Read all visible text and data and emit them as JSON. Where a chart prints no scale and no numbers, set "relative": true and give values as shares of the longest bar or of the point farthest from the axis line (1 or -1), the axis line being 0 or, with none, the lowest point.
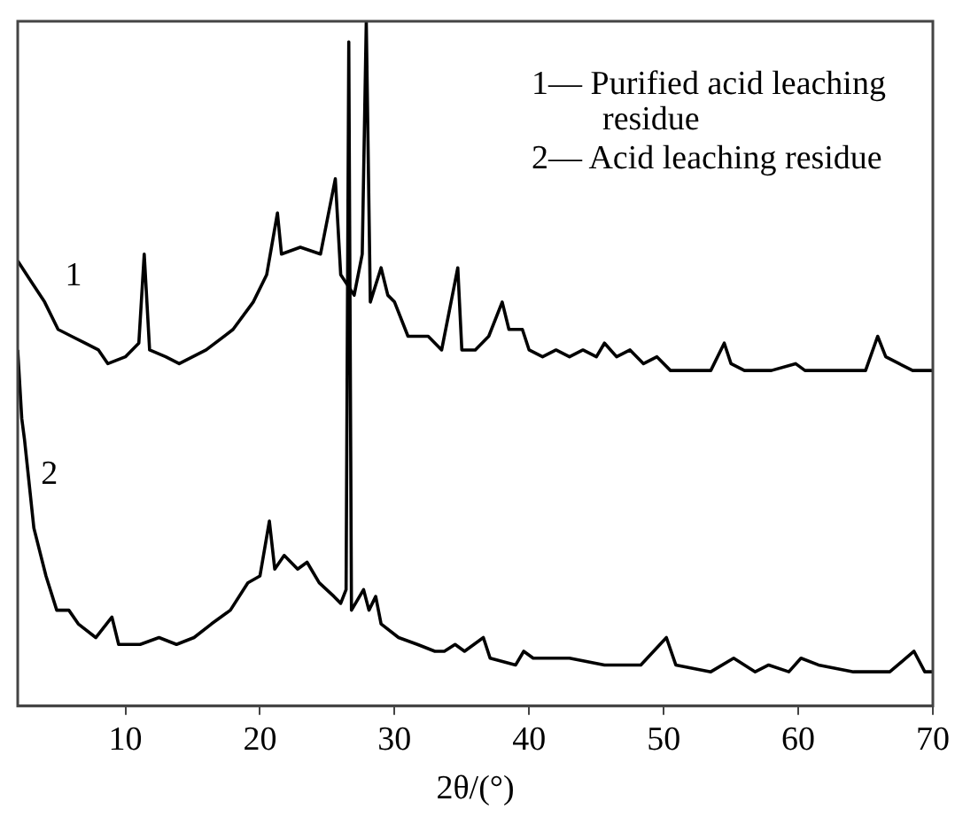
{
  "chart_data": {
    "type": "line",
    "relative": true,
    "xlabel": "2θ/(°)",
    "xlim": [
      2,
      70
    ],
    "xticks": [
      10,
      20,
      30,
      40,
      50,
      60,
      70
    ],
    "legend": false,
    "grid": false,
    "marker": "none",
    "line_style": "solid",
    "annotations": [
      "1— Purified acid leaching residue",
      "2— Acid leaching residue"
    ],
    "series": [
      {
        "name": "1",
        "color": "#000000",
        "x": [
          2,
          3,
          4,
          5,
          6,
          7,
          8,
          8.7,
          10,
          11,
          11.4,
          11.8,
          13,
          14,
          16,
          18,
          19.5,
          20.5,
          21.3,
          21.6,
          23,
          24.5,
          25.6,
          26,
          27,
          27.6,
          27.9,
          28.2,
          29,
          29.5,
          30,
          31,
          32.5,
          33.5,
          34.7,
          35,
          36,
          37,
          38,
          38.5,
          39.5,
          40,
          41,
          42,
          43,
          44,
          45,
          45.6,
          46.5,
          47.5,
          48.5,
          49.5,
          50.5,
          52,
          53.5,
          54.5,
          55,
          56,
          58,
          59.8,
          60.5,
          63,
          65,
          65.9,
          66.5,
          67.5,
          68.5,
          69.5,
          70
        ],
        "values": [
          0.65,
          0.62,
          0.59,
          0.55,
          0.54,
          0.53,
          0.52,
          0.5,
          0.51,
          0.53,
          0.66,
          0.52,
          0.51,
          0.5,
          0.52,
          0.55,
          0.59,
          0.63,
          0.72,
          0.66,
          0.67,
          0.66,
          0.77,
          0.63,
          0.6,
          0.66,
          1,
          0.59,
          0.64,
          0.6,
          0.59,
          0.54,
          0.54,
          0.52,
          0.64,
          0.52,
          0.52,
          0.54,
          0.59,
          0.55,
          0.55,
          0.52,
          0.51,
          0.52,
          0.51,
          0.52,
          0.51,
          0.53,
          0.51,
          0.52,
          0.5,
          0.51,
          0.49,
          0.49,
          0.49,
          0.53,
          0.5,
          0.49,
          0.49,
          0.5,
          0.49,
          0.49,
          0.49,
          0.54,
          0.51,
          0.5,
          0.49,
          0.49,
          0.49
        ]
      },
      {
        "name": "2",
        "color": "#000000",
        "x": [
          2,
          2.3,
          2.5,
          3.2,
          4.1,
          4.9,
          5.8,
          6.5,
          7.8,
          9,
          9.5,
          11.1,
          12.5,
          13.8,
          15.1,
          16.4,
          17.8,
          19.1,
          20,
          20.7,
          21.1,
          21.8,
          22.8,
          23.5,
          24.4,
          25.5,
          26,
          26.4,
          26.6,
          26.8,
          27.7,
          28.1,
          28.6,
          29,
          30.3,
          31.7,
          33,
          33.7,
          34.5,
          35.2,
          36.6,
          37.1,
          39,
          39.6,
          40.3,
          43,
          45.6,
          48.3,
          50.2,
          50.9,
          53.5,
          55.2,
          56.8,
          57.8,
          59.3,
          60.2,
          61.5,
          64.1,
          66.8,
          68.6,
          69.4,
          70
        ],
        "values": [
          0.52,
          0.42,
          0.39,
          0.26,
          0.19,
          0.14,
          0.14,
          0.12,
          0.1,
          0.13,
          0.09,
          0.09,
          0.1,
          0.09,
          0.1,
          0.12,
          0.14,
          0.18,
          0.19,
          0.27,
          0.2,
          0.22,
          0.2,
          0.21,
          0.18,
          0.16,
          0.15,
          0.17,
          0.97,
          0.14,
          0.17,
          0.14,
          0.16,
          0.12,
          0.1,
          0.09,
          0.08,
          0.08,
          0.09,
          0.08,
          0.1,
          0.07,
          0.06,
          0.08,
          0.07,
          0.07,
          0.06,
          0.06,
          0.1,
          0.06,
          0.05,
          0.07,
          0.05,
          0.06,
          0.05,
          0.07,
          0.06,
          0.05,
          0.05,
          0.08,
          0.05,
          0.05
        ]
      }
    ]
  }
}
